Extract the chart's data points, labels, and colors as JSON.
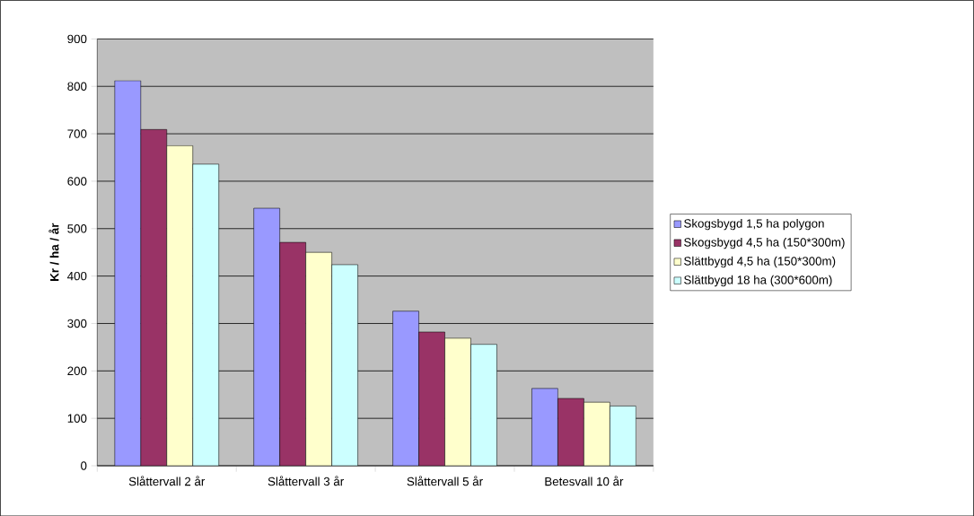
{
  "chart_data": {
    "type": "bar",
    "ylabel": "Kr / ha / år",
    "categories": [
      "Slåttervall 2 år",
      "Slåttervall 3 år",
      "Slåttervall 5 år",
      "Betesvall 10 år"
    ],
    "series": [
      {
        "name": "Skogsbygd 1,5 ha polygon",
        "color": "#9999ff",
        "values": [
          812,
          543,
          326,
          163
        ]
      },
      {
        "name": "Skogsbygd 4,5 ha (150*300m)",
        "color": "#993366",
        "values": [
          709,
          471,
          282,
          142
        ]
      },
      {
        "name": "Slättbygd 4,5 ha (150*300m)",
        "color": "#ffffcc",
        "values": [
          675,
          450,
          269,
          134
        ]
      },
      {
        "name": "Slättbygd 18 ha (300*600m)",
        "color": "#ccffff",
        "values": [
          636,
          424,
          256,
          126
        ]
      }
    ],
    "ylim": [
      0,
      900
    ],
    "yticks": [
      0,
      100,
      200,
      300,
      400,
      500,
      600,
      700,
      800,
      900
    ],
    "grid": "y",
    "legend": "right"
  }
}
